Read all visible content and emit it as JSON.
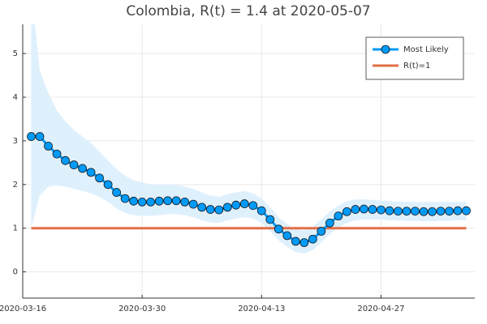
{
  "chart_data": {
    "type": "line",
    "title": "Colombia, R(t) = 1.4 at 2020-05-07",
    "x": [
      "2020-03-17",
      "2020-03-18",
      "2020-03-19",
      "2020-03-20",
      "2020-03-21",
      "2020-03-22",
      "2020-03-23",
      "2020-03-24",
      "2020-03-25",
      "2020-03-26",
      "2020-03-27",
      "2020-03-28",
      "2020-03-29",
      "2020-03-30",
      "2020-03-31",
      "2020-04-01",
      "2020-04-02",
      "2020-04-03",
      "2020-04-04",
      "2020-04-05",
      "2020-04-06",
      "2020-04-07",
      "2020-04-08",
      "2020-04-09",
      "2020-04-10",
      "2020-04-11",
      "2020-04-12",
      "2020-04-13",
      "2020-04-14",
      "2020-04-15",
      "2020-04-16",
      "2020-04-17",
      "2020-04-18",
      "2020-04-19",
      "2020-04-20",
      "2020-04-21",
      "2020-04-22",
      "2020-04-23",
      "2020-04-24",
      "2020-04-25",
      "2020-04-26",
      "2020-04-27",
      "2020-04-28",
      "2020-04-29",
      "2020-04-30",
      "2020-05-01",
      "2020-05-02",
      "2020-05-03",
      "2020-05-04",
      "2020-05-05",
      "2020-05-06",
      "2020-05-07"
    ],
    "series": [
      {
        "name": "Most Likely",
        "color": "#009af9",
        "marker": true,
        "values": [
          3.1,
          3.1,
          2.88,
          2.7,
          2.55,
          2.45,
          2.37,
          2.28,
          2.15,
          2.0,
          1.82,
          1.68,
          1.62,
          1.6,
          1.6,
          1.62,
          1.63,
          1.63,
          1.6,
          1.55,
          1.48,
          1.43,
          1.42,
          1.48,
          1.53,
          1.56,
          1.52,
          1.4,
          1.2,
          0.98,
          0.83,
          0.7,
          0.67,
          0.75,
          0.93,
          1.12,
          1.28,
          1.38,
          1.43,
          1.44,
          1.43,
          1.42,
          1.4,
          1.39,
          1.39,
          1.39,
          1.38,
          1.38,
          1.39,
          1.39,
          1.4,
          1.4
        ]
      },
      {
        "name": "R(t)=1",
        "color": "#e26f46",
        "marker": false,
        "values": [
          1,
          1,
          1,
          1,
          1,
          1,
          1,
          1,
          1,
          1,
          1,
          1,
          1,
          1,
          1,
          1,
          1,
          1,
          1,
          1,
          1,
          1,
          1,
          1,
          1,
          1,
          1,
          1,
          1,
          1,
          1,
          1,
          1,
          1,
          1,
          1,
          1,
          1,
          1,
          1,
          1,
          1,
          1,
          1,
          1,
          1,
          1,
          1,
          1,
          1,
          1,
          1
        ]
      }
    ],
    "band": {
      "color": "#dff0fd",
      "upper": [
        6.5,
        4.6,
        4.1,
        3.7,
        3.45,
        3.25,
        3.1,
        2.95,
        2.75,
        2.55,
        2.35,
        2.2,
        2.1,
        2.05,
        2.0,
        2.0,
        2.0,
        2.0,
        1.95,
        1.9,
        1.82,
        1.75,
        1.72,
        1.78,
        1.82,
        1.85,
        1.8,
        1.68,
        1.48,
        1.25,
        1.1,
        0.98,
        0.95,
        1.03,
        1.2,
        1.38,
        1.52,
        1.62,
        1.66,
        1.66,
        1.65,
        1.63,
        1.62,
        1.61,
        1.6,
        1.6,
        1.6,
        1.6,
        1.6,
        1.6,
        1.6,
        1.6
      ],
      "lower": [
        1.0,
        1.75,
        1.95,
        1.98,
        1.95,
        1.9,
        1.85,
        1.8,
        1.72,
        1.6,
        1.45,
        1.35,
        1.3,
        1.28,
        1.28,
        1.3,
        1.32,
        1.32,
        1.3,
        1.25,
        1.18,
        1.13,
        1.12,
        1.18,
        1.22,
        1.25,
        1.22,
        1.12,
        0.93,
        0.72,
        0.57,
        0.45,
        0.42,
        0.5,
        0.68,
        0.86,
        1.02,
        1.12,
        1.18,
        1.2,
        1.2,
        1.2,
        1.18,
        1.18,
        1.17,
        1.17,
        1.16,
        1.16,
        1.17,
        1.17,
        1.18,
        1.18
      ]
    },
    "xlim": [
      "2020-03-16",
      "2020-05-08"
    ],
    "xticks": [
      "2020-03-16",
      "2020-03-30",
      "2020-04-13",
      "2020-04-27"
    ],
    "ylim": [
      -0.6,
      5.67
    ],
    "yticks": [
      0,
      1,
      2,
      3,
      4,
      5
    ],
    "grid": true,
    "legend": "top-right"
  }
}
